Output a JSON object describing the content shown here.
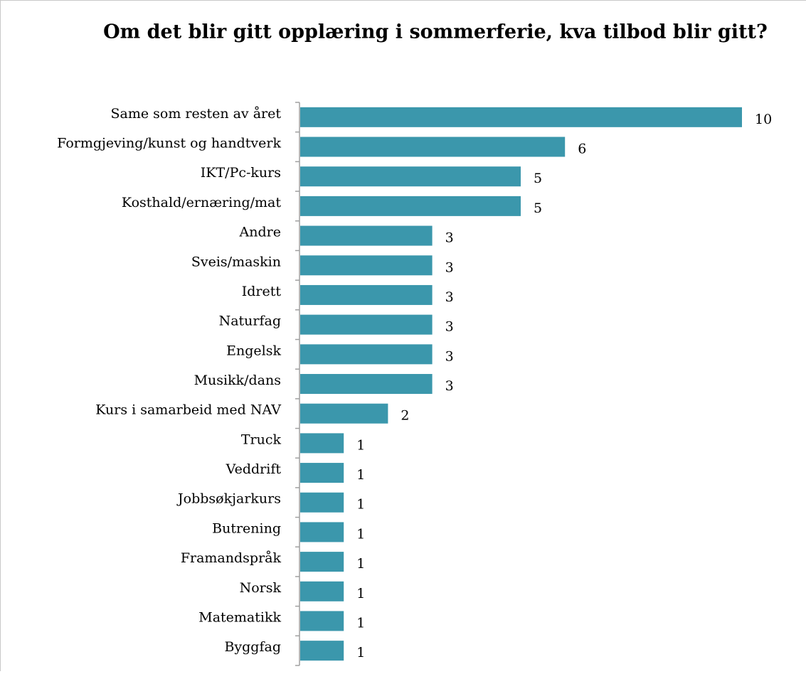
{
  "chart_data": {
    "type": "bar",
    "orientation": "horizontal",
    "title": "Om det blir gitt opplæring i sommerferie, kva tilbod blir gitt?",
    "categories": [
      "Same som resten av året",
      "Formgjeving/kunst og handtverk",
      "IKT/Pc-kurs",
      "Kosthald/ernæring/mat",
      "Andre",
      "Sveis/maskin",
      "Idrett",
      "Naturfag",
      "Engelsk",
      "Musikk/dans",
      "Kurs i samarbeid med NAV",
      "Truck",
      "Veddrift",
      "Jobbsøkjarkurs",
      "Butrening",
      "Framandspråk",
      "Norsk",
      "Matematikk",
      "Byggfag"
    ],
    "values": [
      10,
      6,
      5,
      5,
      3,
      3,
      3,
      3,
      3,
      3,
      2,
      1,
      1,
      1,
      1,
      1,
      1,
      1,
      1
    ],
    "color": "#3b97ac"
  }
}
